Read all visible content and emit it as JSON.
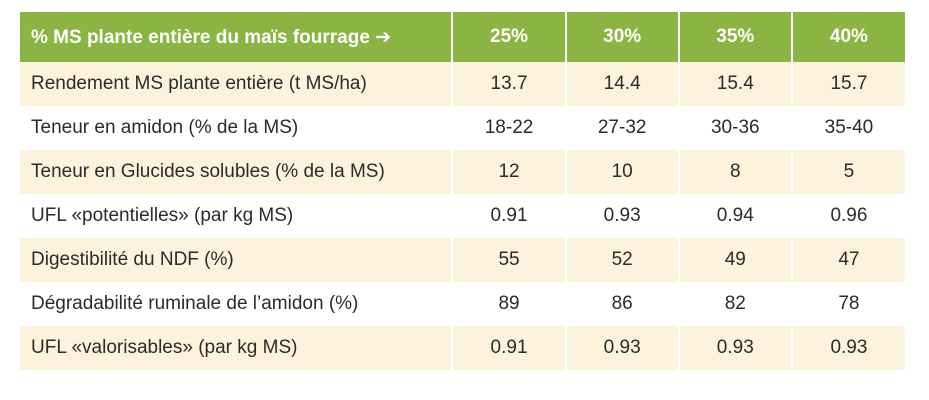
{
  "table": {
    "header": [
      "% MS plante entière du maïs fourrage ➔",
      "25%",
      "30%",
      "35%",
      "40%"
    ],
    "rows": [
      [
        "Rendement MS plante entière (t MS/ha)",
        "13.7",
        "14.4",
        "15.4",
        "15.7"
      ],
      [
        "Teneur en amidon (% de la MS)",
        "18-22",
        "27-32",
        "30-36",
        "35-40"
      ],
      [
        "Teneur en Glucides solubles (% de la MS)",
        "12",
        "10",
        "8",
        "5"
      ],
      [
        "UFL «potentielles» (par kg MS)",
        "0.91",
        "0.93",
        "0.94",
        "0.96"
      ],
      [
        "Digestibilité du NDF (%)",
        "55",
        "52",
        "49",
        "47"
      ],
      [
        "Dégradabilité ruminale de l’amidon (%)",
        "89",
        "86",
        "82",
        "78"
      ],
      [
        "UFL «valorisables» (par kg MS)",
        "0.91",
        "0.93",
        "0.93",
        "0.93"
      ]
    ]
  },
  "colors": {
    "header_bg": "#8bb543",
    "header_text": "#ffffff",
    "stripe_bg": "#fdf3dc",
    "row_bg": "#ffffff",
    "body_text": "#2b2b2b"
  }
}
